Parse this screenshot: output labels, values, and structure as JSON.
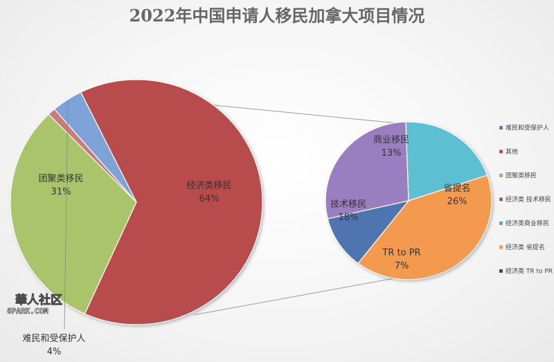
{
  "chart_data": {
    "type": "pie",
    "title": "2022年中国申请人移民加拿大项目情况",
    "main_pie": {
      "slices": [
        {
          "label": "经济类移民",
          "value": 64,
          "display": "64%",
          "color": "#b84b4b"
        },
        {
          "label": "团聚类移民",
          "value": 31,
          "display": "31%",
          "color": "#a9c46a"
        },
        {
          "label": "其他",
          "value": 1,
          "display": "",
          "color": "#c87c7c"
        },
        {
          "label": "难民和受保护人",
          "value": 4,
          "display": "4%",
          "color": "#7da3d8"
        }
      ]
    },
    "secondary_pie": {
      "of": "经济类移民",
      "slices": [
        {
          "label": "商业移民",
          "value": 13,
          "display": "13%",
          "color": "#5bc0d2"
        },
        {
          "label": "省提名",
          "value": 26,
          "display": "26%",
          "color": "#f49a4f"
        },
        {
          "label": "TR to PR",
          "value": 7,
          "display": "7%",
          "color": "#4f75b0"
        },
        {
          "label": "技术移民",
          "value": 18,
          "display": "18%",
          "color": "#9a7fc0"
        }
      ]
    },
    "legend": {
      "position": "right",
      "items": [
        {
          "label": "难民和受保护人",
          "color": "#4f81bd"
        },
        {
          "label": "其他",
          "color": "#c0504d"
        },
        {
          "label": "团聚类移民",
          "color": "#9bbb59"
        },
        {
          "label": "经济类 技术移民",
          "color": "#8064a2"
        },
        {
          "label": "经济类商业移民",
          "color": "#4bacc6"
        },
        {
          "label": "经济类 省提名",
          "color": "#f79646"
        },
        {
          "label": "经济类 TR to PR",
          "color": "#2c4d75"
        }
      ]
    }
  },
  "watermark": {
    "line1": "華人社区",
    "line2": "6PARK.COM"
  }
}
